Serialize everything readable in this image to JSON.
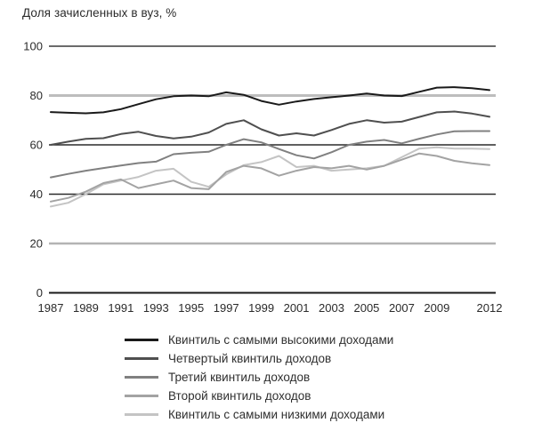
{
  "chart_data": {
    "type": "line",
    "title": "Доля зачисленных в вуз, %",
    "xlabel": "",
    "ylabel": "",
    "ylim": [
      0,
      100
    ],
    "grid": "horizontal",
    "legend_position": "bottom",
    "x": [
      1987,
      1988,
      1989,
      1990,
      1991,
      1992,
      1993,
      1994,
      1995,
      1996,
      1997,
      1998,
      1999,
      2000,
      2001,
      2002,
      2003,
      2004,
      2005,
      2006,
      2007,
      2008,
      2009,
      2010,
      2011,
      2012
    ],
    "x_tick_labels": [
      "1987",
      "1989",
      "1991",
      "1993",
      "1995",
      "1997",
      "1999",
      "2001",
      "2003",
      "2005",
      "2007",
      "2009",
      "2012"
    ],
    "x_tick_years": [
      1987,
      1989,
      1991,
      1993,
      1995,
      1997,
      1999,
      2001,
      2003,
      2005,
      2007,
      2009,
      2012
    ],
    "y_ticks": [
      {
        "value": 0,
        "label": "0",
        "line_color": "#1a1a1a",
        "line_width": 2
      },
      {
        "value": 20,
        "label": "20",
        "line_color": "#b3b3b3",
        "line_width": 2.4
      },
      {
        "value": 40,
        "label": "40",
        "line_color": "#2a2a2a",
        "line_width": 1.4
      },
      {
        "value": 60,
        "label": "60",
        "line_color": "#2a2a2a",
        "line_width": 1.4
      },
      {
        "value": 80,
        "label": "80",
        "line_color": "#bdbdbd",
        "line_width": 3
      },
      {
        "value": 100,
        "label": "100",
        "line_color": "#3a3a3a",
        "line_width": 1.4
      }
    ],
    "axis_text_color": "#2b2b2b",
    "series": [
      {
        "name": "Квинтиль с самыми высокими доходами",
        "color": "#1a1a1a",
        "values": [
          73.3,
          73.0,
          72.8,
          73.2,
          74.5,
          76.5,
          78.5,
          79.7,
          80.0,
          79.7,
          81.3,
          80.3,
          77.8,
          76.3,
          77.6,
          78.6,
          79.3,
          80.0,
          80.8,
          80.0,
          79.8,
          81.5,
          83.2,
          83.4,
          83.0,
          82.2
        ]
      },
      {
        "name": "Четвертый квинтиль доходов",
        "color": "#4f4f4f",
        "values": [
          60.0,
          61.3,
          62.4,
          62.7,
          64.4,
          65.3,
          63.6,
          62.6,
          63.3,
          65.0,
          68.5,
          70.0,
          66.3,
          63.8,
          64.7,
          63.8,
          66.0,
          68.5,
          70.0,
          69.0,
          69.4,
          71.3,
          73.2,
          73.5,
          72.7,
          71.4
        ]
      },
      {
        "name": "Третий квинтиль доходов",
        "color": "#808080",
        "values": [
          46.8,
          48.2,
          49.5,
          50.6,
          51.6,
          52.6,
          53.2,
          56.2,
          56.8,
          57.2,
          60.0,
          62.3,
          61.0,
          58.3,
          55.8,
          54.5,
          57.0,
          60.0,
          61.3,
          62.0,
          60.6,
          62.5,
          64.2,
          65.5,
          65.6,
          65.6
        ]
      },
      {
        "name": "Второй квинтиль доходов",
        "color": "#a3a3a3",
        "values": [
          37.0,
          38.5,
          41.0,
          44.5,
          46.0,
          42.5,
          44.0,
          45.5,
          42.5,
          42.0,
          49.0,
          51.5,
          50.5,
          47.5,
          49.5,
          51.0,
          50.5,
          51.5,
          50.0,
          51.5,
          54.0,
          56.5,
          55.5,
          53.5,
          52.5,
          51.8
        ]
      },
      {
        "name": "Квинтиль с самыми низкими доходами",
        "color": "#c4c4c4",
        "values": [
          35.0,
          36.5,
          40.0,
          44.0,
          45.5,
          47.0,
          49.5,
          50.3,
          45.0,
          43.0,
          48.0,
          51.8,
          53.0,
          55.5,
          51.0,
          51.5,
          49.5,
          50.0,
          50.5,
          51.5,
          55.0,
          58.5,
          59.0,
          58.5,
          58.5,
          58.3
        ]
      }
    ]
  }
}
